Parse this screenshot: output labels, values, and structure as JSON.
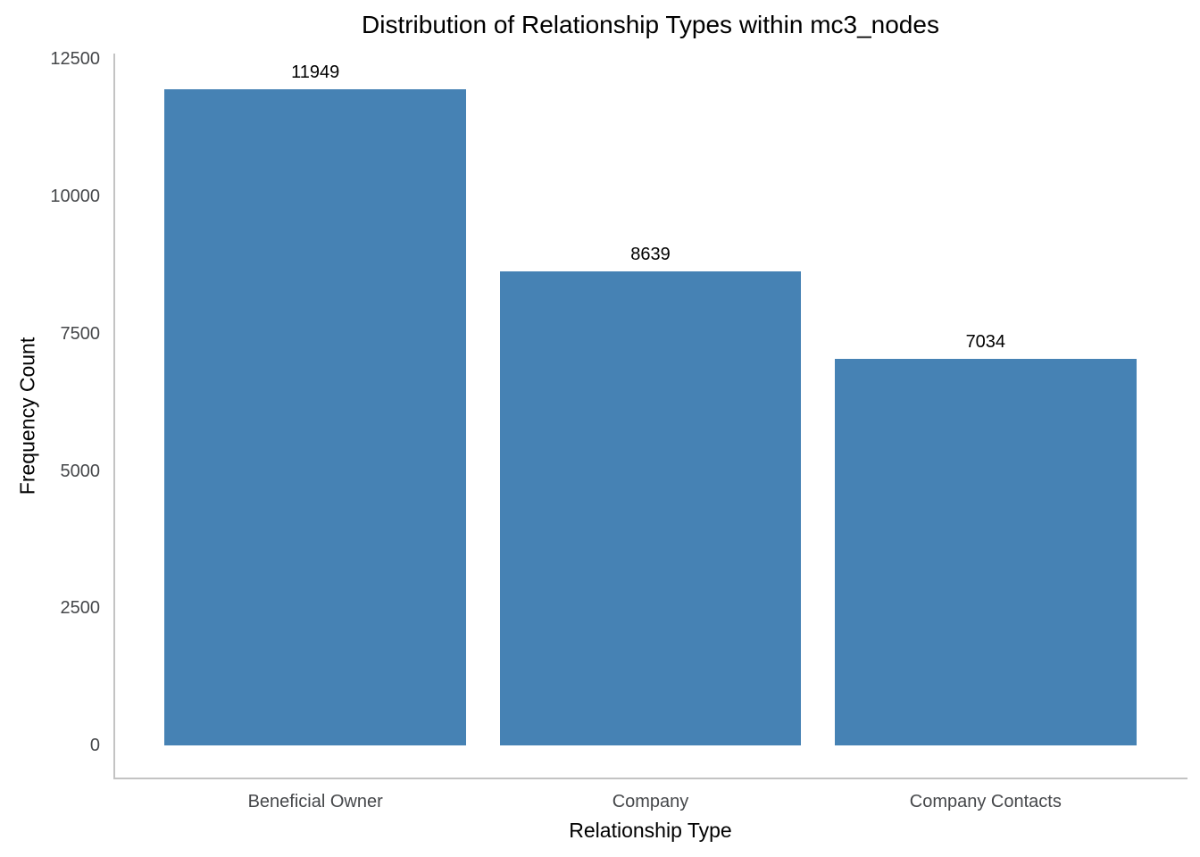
{
  "chart_data": {
    "type": "bar",
    "title": "Distribution of Relationship Types within mc3_nodes",
    "xlabel": "Relationship Type",
    "ylabel": "Frequency Count",
    "categories": [
      "Beneficial Owner",
      "Company",
      "Company Contacts"
    ],
    "values": [
      11949,
      8639,
      7034
    ],
    "bar_value_labels": [
      "11949",
      "8639",
      "7034"
    ],
    "yticks": [
      0,
      2500,
      5000,
      7500,
      10000,
      12500
    ],
    "ylim": [
      -600,
      12600
    ],
    "grid": false,
    "legend_position": "none",
    "colors": {
      "bar": "#4682b4",
      "axis_line": "#c3c3c3",
      "tick_label": "#45474a",
      "title_text": "#000000",
      "background": "#ffffff"
    }
  }
}
